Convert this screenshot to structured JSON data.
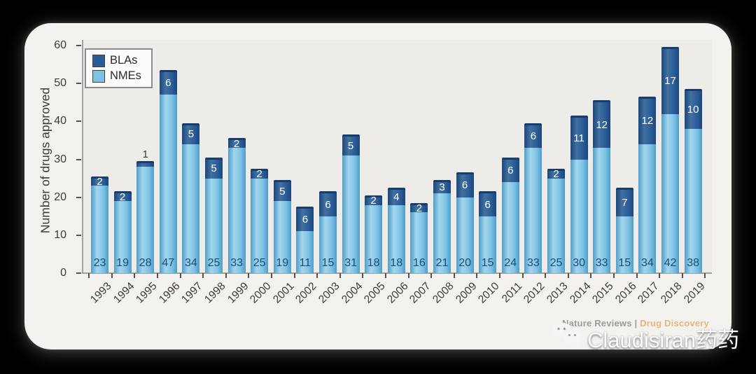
{
  "page_background": "#000000",
  "card_background": "#f3f2ef",
  "chart_data": {
    "type": "bar",
    "stacked": true,
    "title": "",
    "ylabel": "Number of drugs approved",
    "xlabel": "",
    "ylim": [
      0,
      60
    ],
    "yticks": [
      0,
      10,
      20,
      30,
      40,
      50,
      60
    ],
    "grid": false,
    "legend_position": "top-left",
    "categories": [
      "1993",
      "1994",
      "1995",
      "1996",
      "1997",
      "1998",
      "1999",
      "2000",
      "2001",
      "2002",
      "2003",
      "2004",
      "2005",
      "2006",
      "2007",
      "2008",
      "2009",
      "2010",
      "2011",
      "2012",
      "2013",
      "2014",
      "2015",
      "2016",
      "2017",
      "2018",
      "2019"
    ],
    "series": [
      {
        "name": "NMEs",
        "color": "#7cc2e4",
        "color_light": "#a3d6ee",
        "color_dark": "#4f9dc7",
        "cap_color": "#4190ba",
        "label_color": "#1c4a70",
        "values": [
          23,
          19,
          28,
          47,
          34,
          25,
          33,
          25,
          19,
          11,
          15,
          31,
          18,
          18,
          16,
          21,
          20,
          15,
          24,
          33,
          25,
          30,
          33,
          15,
          34,
          42,
          38
        ]
      },
      {
        "name": "BLAs",
        "color": "#2a5c97",
        "color_light": "#41719f",
        "color_dark": "#1c477c",
        "cap_color": "#163d6c",
        "label_color": "#ffffff",
        "values": [
          2,
          2,
          1,
          6,
          5,
          5,
          2,
          2,
          5,
          6,
          6,
          5,
          2,
          4,
          2,
          3,
          6,
          6,
          6,
          6,
          2,
          11,
          12,
          7,
          12,
          17,
          10
        ]
      }
    ]
  },
  "footer": {
    "source_left": "Nature Reviews",
    "separator": "|",
    "source_right": "Drug Discovery"
  },
  "watermark": {
    "icon": "wechat-icon",
    "text": "Claudisiran药药"
  }
}
